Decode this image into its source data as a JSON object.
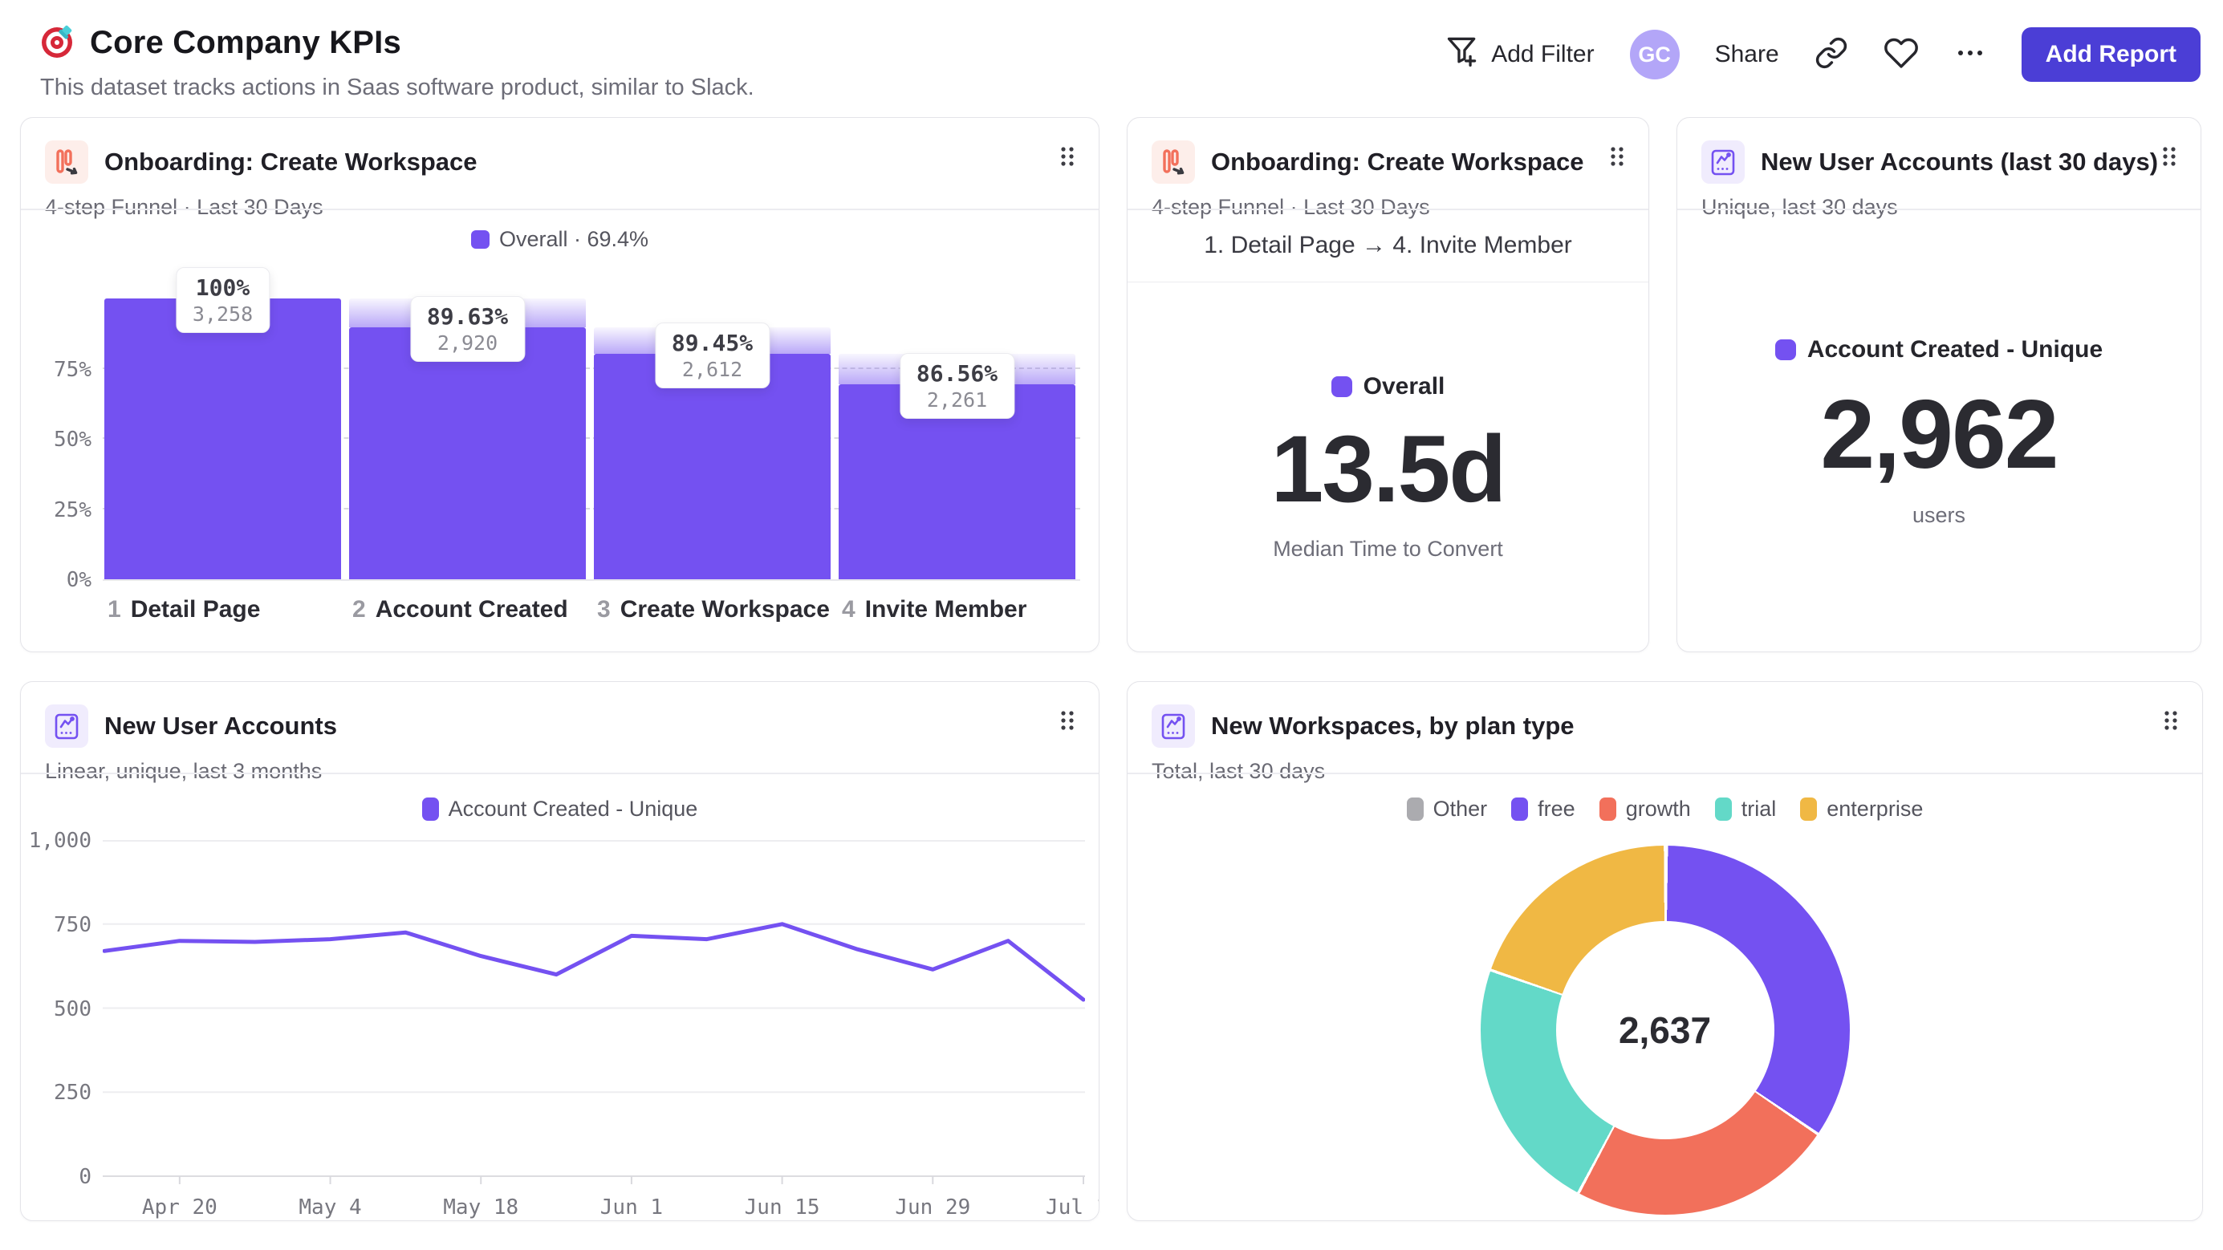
{
  "header": {
    "title": "Core Company KPIs",
    "subtitle": "This dataset tracks actions in Saas software product, similar to Slack.",
    "add_filter_label": "Add Filter",
    "avatar_initials": "GC",
    "share_label": "Share",
    "add_report_label": "Add Report"
  },
  "colors": {
    "accent_purple": "#7451f1",
    "button_indigo": "#4b3ed6",
    "icon_orange": "#f2705b",
    "donut_other": "#ababaf",
    "donut_free": "#7451f1",
    "donut_growth": "#f2705b",
    "donut_trial": "#63d9c8",
    "donut_enterprise": "#f0b844"
  },
  "cards": {
    "funnel": {
      "title": "Onboarding: Create Workspace",
      "subtitle": "4-step Funnel · Last 30 Days",
      "legend_label": "Overall · 69.4%"
    },
    "time_to_convert": {
      "title": "Onboarding: Create Workspace",
      "subtitle": "4-step Funnel · Last 30 Days",
      "step_range": "1. Detail Page → 4. Invite Member",
      "legend_label": "Overall",
      "value": "13.5d",
      "caption": "Median Time to Convert"
    },
    "new_users_30d": {
      "title": "New User Accounts (last 30 days)",
      "subtitle": "Unique, last 30 days",
      "legend_label": "Account Created - Unique",
      "value": "2,962",
      "caption": "users"
    },
    "new_users_trend": {
      "title": "New User Accounts",
      "subtitle": "Linear, unique, last 3 months",
      "legend_label": "Account Created - Unique"
    },
    "workspaces_by_plan": {
      "title": "New Workspaces, by plan type",
      "subtitle": "Total, last 30 days",
      "center_value": "2,637"
    }
  },
  "chart_data": [
    {
      "id": "onboarding-funnel",
      "type": "bar",
      "title": "Onboarding: Create Workspace",
      "overall_conversion": "69.4%",
      "step_numbers": [
        "1",
        "2",
        "3",
        "4"
      ],
      "categories": [
        "Detail Page",
        "Account Created",
        "Create Workspace",
        "Invite Member"
      ],
      "values": [
        3258,
        2920,
        2612,
        2261
      ],
      "values_display": [
        "3,258",
        "2,920",
        "2,612",
        "2,261"
      ],
      "step_conversion_pct": [
        "100%",
        "89.63%",
        "89.45%",
        "86.56%"
      ],
      "pct_of_total": [
        100,
        89.63,
        80.17,
        69.4
      ],
      "y_ticks": [
        "0%",
        "25%",
        "50%",
        "75%"
      ],
      "y_tick_values": [
        0,
        25,
        50,
        75
      ],
      "ylim": [
        0,
        100
      ]
    },
    {
      "id": "median-time-to-convert",
      "type": "metric",
      "series_name": "Overall",
      "value": "13.5d",
      "caption": "Median Time to Convert"
    },
    {
      "id": "new-user-accounts-last-30-days",
      "type": "metric",
      "series_name": "Account Created - Unique",
      "value": "2,962",
      "caption": "users"
    },
    {
      "id": "new-user-accounts-trend",
      "type": "line",
      "series_name": "Account Created - Unique",
      "x": [
        "Apr 13",
        "Apr 20",
        "Apr 27",
        "May 4",
        "May 11",
        "May 18",
        "May 25",
        "Jun 1",
        "Jun 8",
        "Jun 15",
        "Jun 22",
        "Jun 29",
        "Jul 6",
        "Jul 13"
      ],
      "values": [
        670,
        700,
        697,
        705,
        725,
        655,
        600,
        715,
        705,
        750,
        675,
        615,
        700,
        525
      ],
      "x_tick_indices": [
        1,
        3,
        5,
        7,
        9,
        11,
        13
      ],
      "x_tick_labels": [
        "Apr 20",
        "May 4",
        "May 18",
        "Jun 1",
        "Jun 15",
        "Jun 29",
        "Jul 13"
      ],
      "yticks": [
        0,
        250,
        500,
        750,
        1000
      ],
      "ytick_labels": [
        "0",
        "250",
        "500",
        "750",
        "1,000"
      ],
      "ylim": [
        0,
        1000
      ],
      "grid": true,
      "legend_position": "top"
    },
    {
      "id": "new-workspaces-by-plan-type",
      "type": "pie",
      "labels": [
        "Other",
        "free",
        "growth",
        "trial",
        "enterprise"
      ],
      "values": [
        3,
        907,
        614,
        593,
        520
      ],
      "colors": [
        "#ababaf",
        "#7451f1",
        "#f2705b",
        "#63d9c8",
        "#f0b844"
      ],
      "total": 2637,
      "total_display": "2,637",
      "legend_position": "top"
    }
  ]
}
